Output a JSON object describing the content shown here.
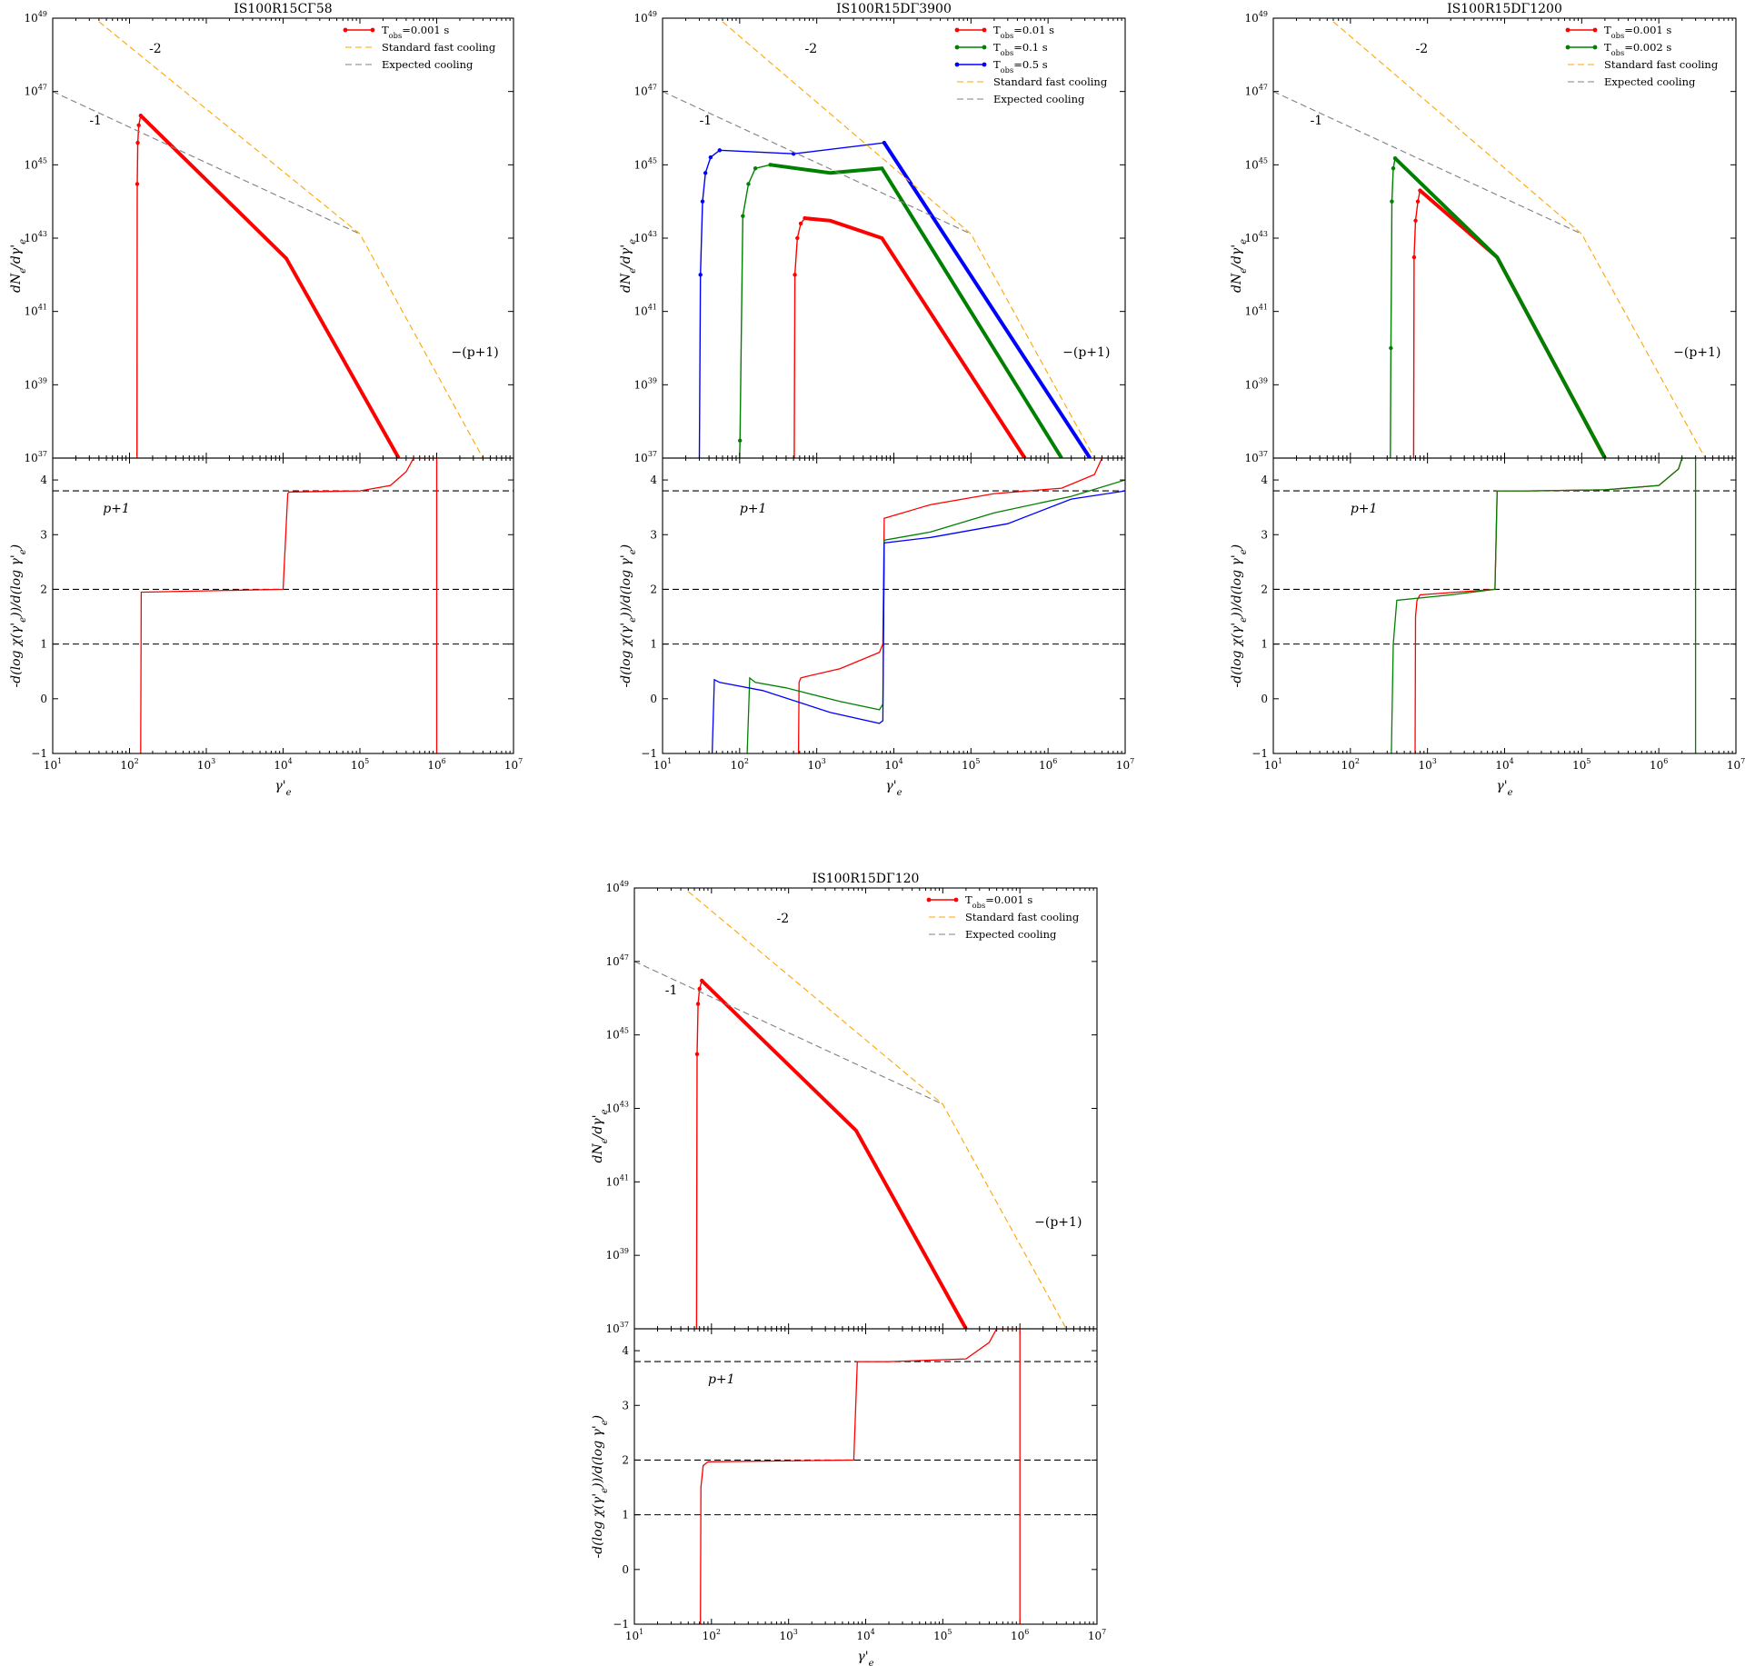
{
  "figure": {
    "panels": [
      {
        "title": "IS100R15CΓ58",
        "legend_position": "top-right",
        "legend": [
          {
            "label": "T_obs=0.001 s",
            "color": "#ff0000",
            "style": "line-marker"
          },
          {
            "label": "Standard fast cooling",
            "color": "#ffa500",
            "style": "dashed"
          },
          {
            "label": "Expected cooling",
            "color": "#808080",
            "style": "dashed"
          }
        ]
      },
      {
        "title": "IS100R15DΓ3900",
        "legend_position": "top-right",
        "legend": [
          {
            "label": "T_obs=0.01 s",
            "color": "#ff0000",
            "style": "line-marker"
          },
          {
            "label": "T_obs=0.1 s",
            "color": "#008000",
            "style": "line-marker"
          },
          {
            "label": "T_obs=0.5 s",
            "color": "#0000ff",
            "style": "line-marker"
          },
          {
            "label": "Standard fast cooling",
            "color": "#ffa500",
            "style": "dashed"
          },
          {
            "label": "Expected cooling",
            "color": "#808080",
            "style": "dashed"
          }
        ]
      },
      {
        "title": "IS100R15DΓ1200",
        "legend_position": "top-right",
        "legend": [
          {
            "label": "T_obs=0.001 s",
            "color": "#ff0000",
            "style": "line-marker"
          },
          {
            "label": "T_obs=0.002 s",
            "color": "#008000",
            "style": "line-marker"
          },
          {
            "label": "Standard fast cooling",
            "color": "#ffa500",
            "style": "dashed"
          },
          {
            "label": "Expected cooling",
            "color": "#808080",
            "style": "dashed"
          }
        ]
      },
      {
        "title": "IS100R15DΓ120",
        "legend_position": "top-right",
        "legend": [
          {
            "label": "T_obs=0.001 s",
            "color": "#ff0000",
            "style": "line-marker"
          },
          {
            "label": "Standard fast cooling",
            "color": "#ffa500",
            "style": "dashed"
          },
          {
            "label": "Expected cooling",
            "color": "#808080",
            "style": "dashed"
          }
        ]
      }
    ],
    "upper_ylabel": "dN_e/dγ'_e",
    "lower_ylabel": "-d(log χ(γ'_e))/d(log γ'_e)",
    "xlabel": "γ'_e",
    "upper_yticks": [
      "10^37",
      "10^39",
      "10^41",
      "10^43",
      "10^45",
      "10^47",
      "10^49"
    ],
    "lower_yticks": [
      "−1",
      "0",
      "1",
      "2",
      "3",
      "4"
    ],
    "xticks": [
      "10^1",
      "10^2",
      "10^3",
      "10^4",
      "10^5",
      "10^6",
      "10^7"
    ],
    "annotations": {
      "slope_minus2": "-2",
      "slope_minus1": "-1",
      "slope_minus_p1": "−(p+1)",
      "p_plus_1": "p+1"
    }
  },
  "chart_data": [
    {
      "type": "line",
      "title": "IS100R15CΓ58",
      "x_scale": "log",
      "xlim": [
        10,
        10000000
      ],
      "upper": {
        "ylabel": "dN_e/dγ'_e",
        "y_scale": "log",
        "ylim": [
          1e+37,
          1e+49
        ],
        "series": [
          {
            "name": "T_obs=0.001 s",
            "color": "#ff0000",
            "x": [
              125,
              126,
              128,
              132,
              140,
              11000,
              320000
            ],
            "y": [
              1e+37,
              3e+44,
              4e+45,
              1.2e+46,
              2.2e+46,
              2.8e+42,
              1e+37
            ]
          },
          {
            "name": "Standard fast cooling",
            "color": "#ffa500",
            "x": [
              40,
              100000,
              4000000
            ],
            "y": [
              8e+48,
              1.3e+43,
              1e+37
            ]
          },
          {
            "name": "Expected cooling",
            "color": "#808080",
            "x": [
              10,
              100000
            ],
            "y": [
              1e+47,
              1.3e+43
            ]
          }
        ]
      },
      "lower": {
        "ylabel": "-d(log χ(γ'_e))/d(log γ'_e)",
        "ylim": [
          -1,
          4.4
        ],
        "hlines": [
          3.8,
          2,
          1
        ],
        "series": [
          {
            "name": "T_obs=0.001 s",
            "color": "#ff0000",
            "x": [
              140,
              142,
              150,
              10000,
              11500,
              12000,
              100000,
              250000,
              400000,
              500000,
              1000000,
              1000000
            ],
            "y": [
              -1,
              1.95,
              1.95,
              2,
              3.75,
              3.78,
              3.8,
              3.9,
              4.15,
              4.4,
              4.4,
              -1
            ]
          }
        ]
      }
    },
    {
      "type": "line",
      "title": "IS100R15DΓ3900",
      "x_scale": "log",
      "xlim": [
        10,
        10000000
      ],
      "upper": {
        "ylabel": "dN_e/dγ'_e",
        "y_scale": "log",
        "ylim": [
          1e+37,
          1e+49
        ],
        "series": [
          {
            "name": "T_obs=0.01 s",
            "color": "#ff0000",
            "x": [
              510,
              520,
              560,
              620,
              700,
              1500,
              7000,
              500000
            ],
            "y": [
              1e+37,
              1e+42,
              1e+43,
              2.5e+43,
              3.5e+43,
              3e+43,
              1e+43,
              1e+37
            ]
          },
          {
            "name": "T_obs=0.1 s",
            "color": "#008000",
            "x": [
              100,
              101,
              110,
              130,
              160,
              250,
              1500,
              7000,
              1500000
            ],
            "y": [
              1e+37,
              3e+37,
              4e+43,
              3e+44,
              8e+44,
              1e+45,
              6e+44,
              8e+44,
              1e+37
            ]
          },
          {
            "name": "T_obs=0.5 s",
            "color": "#0000ff",
            "x": [
              30,
              31,
              33,
              36,
              42,
              55,
              500,
              7500,
              3500000
            ],
            "y": [
              1e+37,
              1e+42,
              1e+44,
              6e+44,
              1.6e+45,
              2.5e+45,
              2e+45,
              4e+45,
              1e+37
            ]
          },
          {
            "name": "Standard fast cooling",
            "color": "#ffa500",
            "x": [
              60,
              100000,
              4000000
            ],
            "y": [
              8e+48,
              1.3e+43,
              1e+37
            ]
          },
          {
            "name": "Expected cooling",
            "color": "#808080",
            "x": [
              10,
              100000
            ],
            "y": [
              1e+47,
              1.3e+43
            ]
          }
        ]
      },
      "lower": {
        "ylabel": "-d(log χ(γ'_e))/d(log γ'_e)",
        "ylim": [
          -1,
          4.4
        ],
        "hlines": [
          3.8,
          2,
          1
        ],
        "series": [
          {
            "name": "T_obs=0.01 s",
            "color": "#ff0000",
            "x": [
              580,
              590,
              620,
              700,
              2000,
              6500,
              7200,
              7500,
              30000,
              200000,
              1500000,
              4000000,
              5000000
            ],
            "y": [
              -1,
              0.3,
              0.38,
              0.4,
              0.55,
              0.85,
              1.0,
              3.3,
              3.55,
              3.75,
              3.85,
              4.1,
              4.4
            ]
          },
          {
            "name": "T_obs=0.1 s",
            "color": "#008000",
            "x": [
              125,
              135,
              160,
              400,
              2000,
              6500,
              7200,
              7500,
              30000,
              200000,
              2000000,
              10000000
            ],
            "y": [
              -1,
              0.38,
              0.3,
              0.2,
              -0.05,
              -0.2,
              -0.1,
              2.9,
              3.05,
              3.4,
              3.7,
              4.0
            ]
          },
          {
            "name": "T_obs=0.5 s",
            "color": "#0000ff",
            "x": [
              44,
              47,
              55,
              200,
              1500,
              6500,
              7200,
              7500,
              30000,
              300000,
              2000000,
              10000000
            ],
            "y": [
              -1,
              0.35,
              0.3,
              0.15,
              -0.25,
              -0.45,
              -0.4,
              2.85,
              2.95,
              3.2,
              3.65,
              3.8
            ]
          }
        ]
      }
    },
    {
      "type": "line",
      "title": "IS100R15DΓ1200",
      "x_scale": "log",
      "xlim": [
        10,
        10000000
      ],
      "upper": {
        "ylabel": "dN_e/dγ'_e",
        "y_scale": "log",
        "ylim": [
          1e+37,
          1e+49
        ],
        "series": [
          {
            "name": "T_obs=0.001 s",
            "color": "#ff0000",
            "x": [
              660,
              670,
              700,
              750,
              800,
              8000,
              200000
            ],
            "y": [
              1e+37,
              3e+42,
              3e+43,
              1e+44,
              2e+44,
              3e+42,
              1e+37
            ]
          },
          {
            "name": "T_obs=0.002 s",
            "color": "#008000",
            "x": [
              330,
              335,
              345,
              360,
              380,
              8000,
              200000
            ],
            "y": [
              1e+37,
              1e+40,
              1e+44,
              8e+44,
              1.5e+45,
              3e+42,
              1e+37
            ]
          },
          {
            "name": "Standard fast cooling",
            "color": "#ffa500",
            "x": [
              60,
              100000,
              4000000
            ],
            "y": [
              8e+48,
              1.3e+43,
              1e+37
            ]
          },
          {
            "name": "Expected cooling",
            "color": "#808080",
            "x": [
              10,
              100000
            ],
            "y": [
              1e+47,
              1.3e+43
            ]
          }
        ]
      },
      "lower": {
        "ylabel": "-d(log χ(γ'_e))/d(log γ'_e)",
        "ylim": [
          -1,
          4.4
        ],
        "hlines": [
          3.8,
          2,
          1
        ],
        "series": [
          {
            "name": "T_obs=0.001 s",
            "color": "#ff0000",
            "x": [
              690,
              700,
              730,
              800,
              7500,
              8000,
              20000,
              200000,
              1000000,
              1800000,
              2000000
            ],
            "y": [
              -1,
              1.5,
              1.8,
              1.9,
              2.0,
              3.8,
              3.8,
              3.82,
              3.9,
              4.2,
              4.4
            ]
          },
          {
            "name": "T_obs=0.002 s",
            "color": "#008000",
            "x": [
              340,
              360,
              400,
              2000,
              7500,
              8000,
              20000,
              200000,
              1000000,
              1800000,
              2000000,
              3000000,
              3000000
            ],
            "y": [
              -1,
              1.0,
              1.8,
              1.9,
              2.0,
              3.8,
              3.8,
              3.82,
              3.9,
              4.2,
              4.4,
              4.4,
              -1
            ]
          }
        ]
      }
    },
    {
      "type": "line",
      "title": "IS100R15DΓ120",
      "x_scale": "log",
      "xlim": [
        10,
        10000000
      ],
      "upper": {
        "ylabel": "dN_e/dγ'_e",
        "y_scale": "log",
        "ylim": [
          1e+37,
          1e+49
        ],
        "series": [
          {
            "name": "T_obs=0.001 s",
            "color": "#ff0000",
            "x": [
              64,
              65,
              67,
              70,
              75,
              7500,
              200000
            ],
            "y": [
              1e+37,
              3e+44,
              7e+45,
              1.8e+46,
              3e+46,
              2.5e+42,
              1e+37
            ]
          },
          {
            "name": "Standard fast cooling",
            "color": "#ffa500",
            "x": [
              50,
              100000,
              4000000
            ],
            "y": [
              8e+48,
              1.3e+43,
              1e+37
            ]
          },
          {
            "name": "Expected cooling",
            "color": "#808080",
            "x": [
              10,
              100000
            ],
            "y": [
              1e+47,
              1.3e+43
            ]
          }
        ]
      },
      "lower": {
        "ylabel": "-d(log χ(γ'_e))/d(log γ'_e)",
        "ylim": [
          -1,
          4.4
        ],
        "hlines": [
          3.8,
          2,
          1
        ],
        "series": [
          {
            "name": "T_obs=0.001 s",
            "color": "#ff0000",
            "x": [
              72,
              73,
              78,
              90,
              7000,
              7800,
              20000,
              200000,
              400000,
              500000,
              1000000,
              1000000
            ],
            "y": [
              -1,
              1.5,
              1.9,
              1.97,
              2.0,
              3.8,
              3.8,
              3.85,
              4.15,
              4.4,
              4.4,
              -1
            ]
          }
        ]
      }
    }
  ]
}
